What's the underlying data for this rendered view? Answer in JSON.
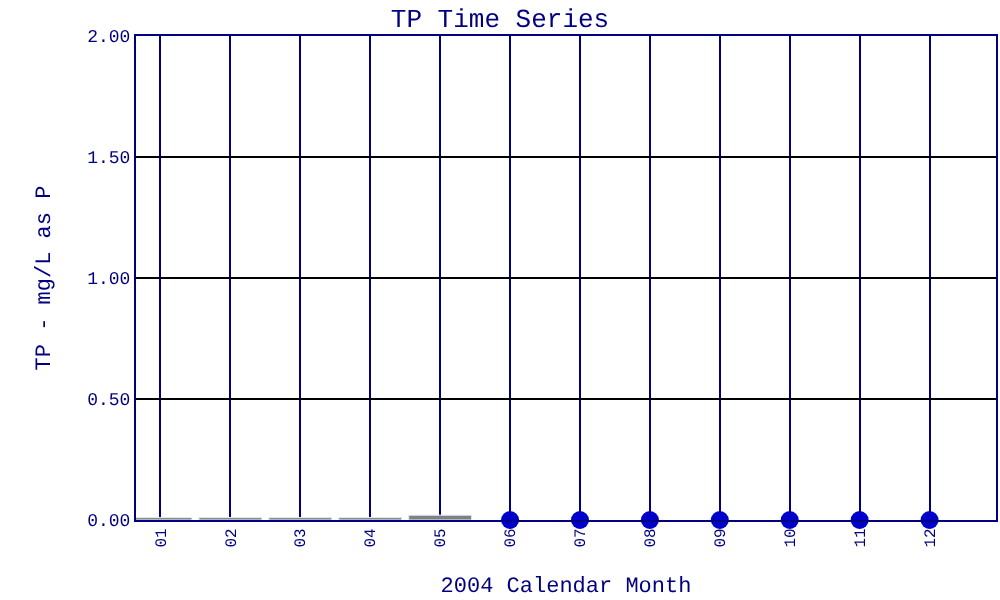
{
  "chart_data": {
    "type": "bar",
    "title": "TP Time Series",
    "xlabel": "2004 Calendar Month",
    "ylabel": "TP - mg/L as P",
    "categories": [
      "01",
      "02",
      "03",
      "04",
      "05",
      "06",
      "07",
      "08",
      "09",
      "10",
      "11",
      "12"
    ],
    "series": [
      {
        "color": "#808080",
        "values": [
          0.01,
          0.01,
          0.01,
          0.01,
          0.02,
          null,
          null,
          null,
          null,
          null,
          null,
          null
        ]
      },
      {
        "type": "scatter",
        "color": "#0000cc",
        "values": [
          null,
          null,
          null,
          null,
          null,
          0,
          0,
          0,
          0,
          0,
          0,
          0
        ]
      }
    ],
    "ylim": [
      0,
      2
    ],
    "yticks": [
      {
        "value": 0,
        "label": "0.00"
      },
      {
        "value": 0.5,
        "label": "0.50"
      },
      {
        "value": 1,
        "label": "1.00"
      },
      {
        "value": 1.5,
        "label": "1.50"
      },
      {
        "value": 2,
        "label": "2.00"
      }
    ],
    "grid": true,
    "marker": "circle"
  }
}
